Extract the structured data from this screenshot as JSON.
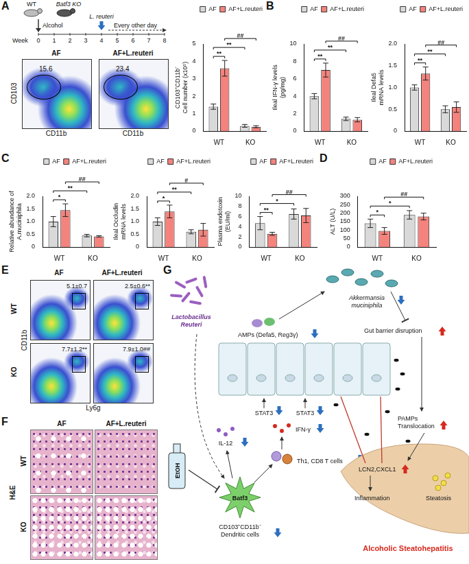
{
  "panel_labels": [
    "A",
    "B",
    "C",
    "D",
    "E",
    "F",
    "G"
  ],
  "chart_data": [
    {
      "type": "bar",
      "y_label": [
        "CD103⁺CD11b⁻",
        "Cell number (x10⁵)"
      ],
      "categories": [
        "WT",
        "KO"
      ],
      "series": [
        {
          "name": "AF",
          "color": "#d9d9d9",
          "values": [
            1.4,
            0.3
          ],
          "errors": [
            0.15,
            0.08
          ]
        },
        {
          "name": "AF+L.reuteri",
          "color": "#f4837d",
          "values": [
            3.6,
            0.25
          ],
          "errors": [
            0.45,
            0.06
          ]
        }
      ],
      "ylim": [
        0,
        5
      ],
      "yticks": [
        0,
        1,
        2,
        3,
        4,
        5
      ],
      "grid": false,
      "legend": "top",
      "annotations": [
        {
          "label": "**",
          "a": [
            "WT",
            "AF"
          ],
          "b": [
            "WT",
            "AF+L.reuteri"
          ]
        },
        {
          "label": "**",
          "a": [
            "WT",
            "AF"
          ],
          "b": [
            "KO",
            "AF"
          ]
        },
        {
          "label": "##",
          "a": [
            "WT",
            "AF+L.reuteri"
          ],
          "b": [
            "KO",
            "AF+L.reuteri"
          ]
        }
      ]
    },
    {
      "type": "bar",
      "y_label": [
        "Ileal IFN-γ levels",
        "(pg/mg)"
      ],
      "categories": [
        "WT",
        "KO"
      ],
      "series": [
        {
          "name": "AF",
          "color": "#d9d9d9",
          "values": [
            4.0,
            1.4
          ],
          "errors": [
            0.3,
            0.2
          ]
        },
        {
          "name": "AF+L.reuteri",
          "color": "#f4837d",
          "values": [
            7.0,
            1.3
          ],
          "errors": [
            0.8,
            0.25
          ]
        }
      ],
      "ylim": [
        0,
        10
      ],
      "yticks": [
        0,
        2,
        4,
        6,
        8,
        10
      ],
      "grid": false,
      "legend": "top",
      "annotations": [
        {
          "label": "**",
          "a": [
            "WT",
            "AF"
          ],
          "b": [
            "WT",
            "AF+L.reuteri"
          ]
        },
        {
          "label": "**",
          "a": [
            "WT",
            "AF"
          ],
          "b": [
            "KO",
            "AF"
          ]
        },
        {
          "label": "##",
          "a": [
            "WT",
            "AF+L.reuteri"
          ],
          "b": [
            "KO",
            "AF+L.reuteri"
          ]
        }
      ]
    },
    {
      "type": "bar",
      "y_label": [
        "Ileal Defa5",
        "mRNA levels"
      ],
      "categories": [
        "WT",
        "KO"
      ],
      "series": [
        {
          "name": "AF",
          "color": "#d9d9d9",
          "values": [
            1.0,
            0.5
          ],
          "errors": [
            0.06,
            0.08
          ]
        },
        {
          "name": "AF+L.reuteri",
          "color": "#f4837d",
          "values": [
            1.32,
            0.55
          ],
          "errors": [
            0.15,
            0.12
          ]
        }
      ],
      "ylim": [
        0,
        2
      ],
      "yticks": [
        0,
        0.5,
        {
          "value": 1,
          "label": "1.0"
        },
        1.5,
        {
          "value": 2,
          "label": "2.0"
        }
      ],
      "grid": false,
      "legend": "top",
      "annotations": [
        {
          "label": "**",
          "a": [
            "WT",
            "AF"
          ],
          "b": [
            "WT",
            "AF+L.reuteri"
          ]
        },
        {
          "label": "**",
          "a": [
            "WT",
            "AF"
          ],
          "b": [
            "KO",
            "AF"
          ]
        },
        {
          "label": "##",
          "a": [
            "WT",
            "AF+L.reuteri"
          ],
          "b": [
            "KO",
            "AF+L.reuteri"
          ]
        }
      ]
    },
    {
      "type": "bar",
      "y_label": [
        "Relative abundance of",
        "A.muciniphila"
      ],
      "categories": [
        "WT",
        "KO"
      ],
      "series": [
        {
          "name": "AF",
          "color": "#d9d9d9",
          "values": [
            1.0,
            0.45
          ],
          "errors": [
            0.2,
            0.05
          ]
        },
        {
          "name": "AF+L.reuteri",
          "color": "#f4837d",
          "values": [
            1.45,
            0.42
          ],
          "errors": [
            0.25,
            0.03
          ]
        }
      ],
      "ylim": [
        0,
        2
      ],
      "yticks": [
        0,
        0.5,
        {
          "value": 1,
          "label": "1.0"
        },
        1.5,
        {
          "value": 2,
          "label": "2.0"
        }
      ],
      "grid": false,
      "legend": "top",
      "annotations": [
        {
          "label": "*",
          "a": [
            "WT",
            "AF"
          ],
          "b": [
            "WT",
            "AF+L.reuteri"
          ]
        },
        {
          "label": "**",
          "a": [
            "WT",
            "AF"
          ],
          "b": [
            "KO",
            "AF"
          ]
        },
        {
          "label": "##",
          "a": [
            "WT",
            "AF+L.reuteri"
          ],
          "b": [
            "KO",
            "AF+L.reuteri"
          ]
        }
      ]
    },
    {
      "type": "bar",
      "y_label": [
        "Ileal Occludin",
        "mRNA levels"
      ],
      "categories": [
        "WT",
        "KO"
      ],
      "series": [
        {
          "name": "AF",
          "color": "#d9d9d9",
          "values": [
            1.0,
            0.6
          ],
          "errors": [
            0.15,
            0.08
          ]
        },
        {
          "name": "AF+L.reuteri",
          "color": "#f4837d",
          "values": [
            1.4,
            0.68
          ],
          "errors": [
            0.25,
            0.25
          ]
        }
      ],
      "ylim": [
        0,
        2
      ],
      "yticks": [
        0,
        0.5,
        {
          "value": 1,
          "label": "1.0"
        },
        1.5,
        {
          "value": 2,
          "label": "2.0"
        }
      ],
      "grid": false,
      "legend": "top",
      "annotations": [
        {
          "label": "*",
          "a": [
            "WT",
            "AF"
          ],
          "b": [
            "WT",
            "AF+L.reuteri"
          ]
        },
        {
          "label": "**",
          "a": [
            "WT",
            "AF"
          ],
          "b": [
            "KO",
            "AF"
          ]
        },
        {
          "label": "#",
          "a": [
            "WT",
            "AF+L.reuteri"
          ],
          "b": [
            "KO",
            "AF+L.reuteri"
          ]
        }
      ]
    },
    {
      "type": "bar",
      "y_label": [
        "Plasma endotoxin",
        "(EU/ml)"
      ],
      "categories": [
        "WT",
        "KO"
      ],
      "series": [
        {
          "name": "AF",
          "color": "#d9d9d9",
          "values": [
            4.7,
            6.5
          ],
          "errors": [
            1.3,
            1.0
          ]
        },
        {
          "name": "AF+L.reuteri",
          "color": "#f4837d",
          "values": [
            2.6,
            6.2
          ],
          "errors": [
            0.3,
            1.4
          ]
        }
      ],
      "ylim": [
        0,
        10
      ],
      "yticks": [
        0,
        2,
        4,
        6,
        8,
        10
      ],
      "grid": false,
      "legend": "top",
      "annotations": [
        {
          "label": "**",
          "a": [
            "WT",
            "AF"
          ],
          "b": [
            "WT",
            "AF+L.reuteri"
          ]
        },
        {
          "label": "*",
          "a": [
            "WT",
            "AF"
          ],
          "b": [
            "KO",
            "AF"
          ]
        },
        {
          "label": "##",
          "a": [
            "WT",
            "AF+L.reuteri"
          ],
          "b": [
            "KO",
            "AF+L.reuteri"
          ]
        }
      ]
    },
    {
      "type": "bar",
      "y_label": [
        "ALT (U/L)"
      ],
      "categories": [
        "WT",
        "KO"
      ],
      "series": [
        {
          "name": "AF",
          "color": "#d9d9d9",
          "values": [
            140,
            190
          ],
          "errors": [
            25,
            25
          ]
        },
        {
          "name": "AF+L.reuteri",
          "color": "#f4837d",
          "values": [
            95,
            180
          ],
          "errors": [
            20,
            20
          ]
        }
      ],
      "ylim": [
        0,
        300
      ],
      "yticks": [
        0,
        50,
        100,
        150,
        200,
        250,
        300
      ],
      "grid": false,
      "legend": "top",
      "annotations": [
        {
          "label": "*",
          "a": [
            "WT",
            "AF"
          ],
          "b": [
            "WT",
            "AF+L.reuteri"
          ]
        },
        {
          "label": "*",
          "a": [
            "WT",
            "AF"
          ],
          "b": [
            "KO",
            "AF"
          ]
        },
        {
          "label": "##",
          "a": [
            "WT",
            "AF+L.reuteri"
          ],
          "b": [
            "KO",
            "AF+L.reuteri"
          ]
        }
      ]
    }
  ],
  "schematic": {
    "groups": [
      "WT",
      "Batf3 KO"
    ],
    "treatment": "Alcohol",
    "axis_label": "Week",
    "weeks": [
      0,
      1,
      2,
      3,
      4,
      5,
      6,
      7,
      8
    ],
    "probiotic": "L. reuteri",
    "schedule": "Every other day"
  },
  "flow_A": {
    "x_label": "CD11b",
    "y_label": "CD103",
    "plots": [
      {
        "title": "AF",
        "value": 15.6
      },
      {
        "title": "AF+L.reuteri",
        "value": 23.4
      }
    ]
  },
  "flow_E": {
    "x_label": "Ly6g",
    "y_label": "CD11b",
    "columns": [
      "AF",
      "AF+L.reuteri"
    ],
    "rows": [
      "WT",
      "KO"
    ],
    "cells": [
      [
        "5.1±0.7",
        "2.5±0.6**"
      ],
      [
        "7.7±1.2**",
        "7.9±1.0##"
      ]
    ]
  },
  "histology": {
    "stain": "H&E",
    "columns": [
      "AF",
      "AF+L.reuteri"
    ],
    "rows": [
      "WT",
      "KO"
    ]
  },
  "diagram": {
    "probiotic": [
      "Lactobacillus",
      "Reuteri"
    ],
    "bacterium": [
      "Akkermansia",
      "muciniphila"
    ],
    "amps": "AMPs (Defa5, Reg3γ)",
    "barrier": "Gut barrier disruption",
    "stat3": [
      "STAT3",
      "STAT3"
    ],
    "ifn": "IFN-γ",
    "il12": "IL-12",
    "t_cells": "Th1, CD8 T cells",
    "ethanol": "EtOH",
    "batf3": "Batf3",
    "dc": [
      "CD103⁺CD11b⁻",
      "Dendritic cells"
    ],
    "pamps": [
      "PAMPs",
      "Translocation"
    ],
    "liver_factors": "LCN2,CXCL1",
    "inflammation": "Inflammation",
    "steatosis": "Steatosis",
    "disease": "Alcoholic Steatohepatitis"
  }
}
